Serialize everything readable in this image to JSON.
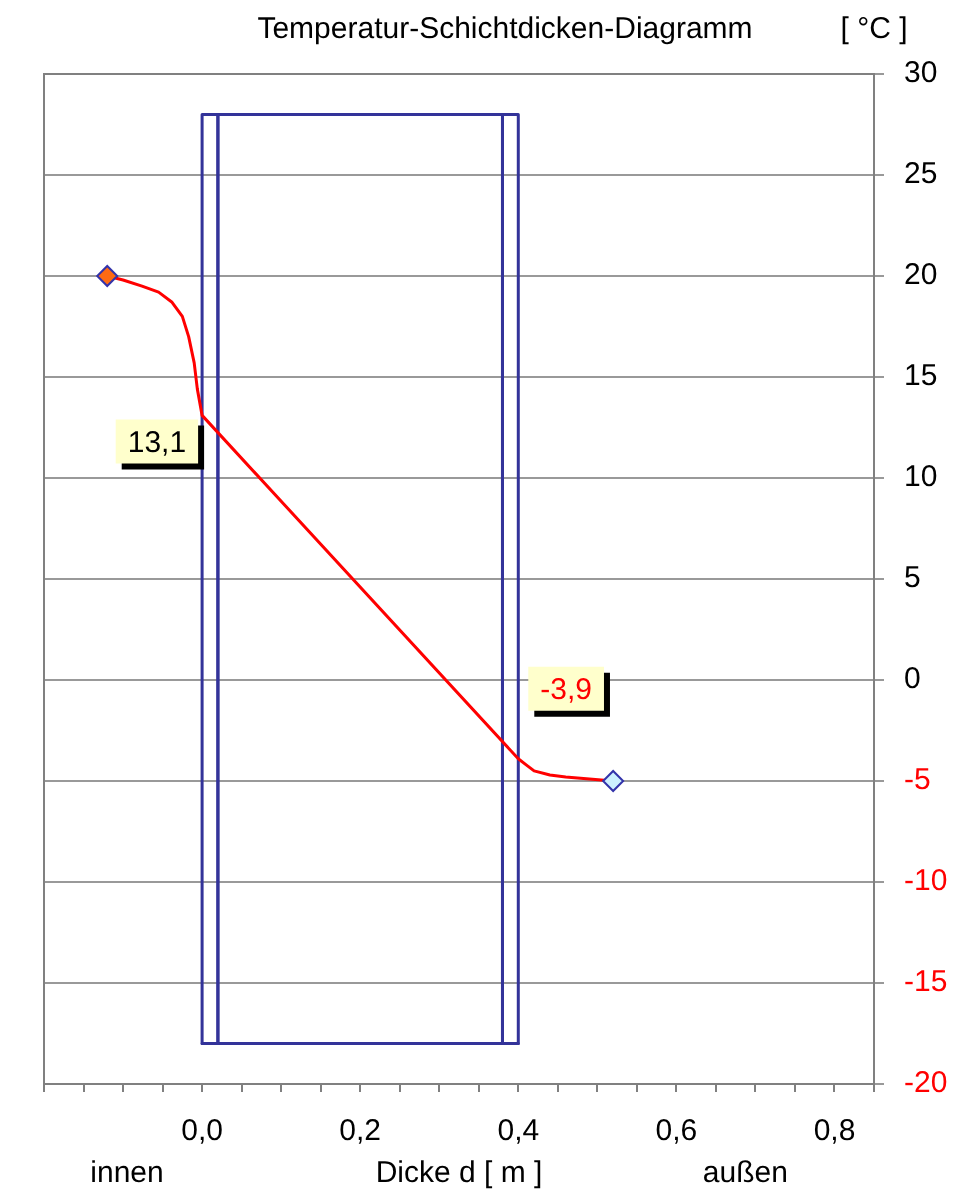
{
  "chart_data": {
    "type": "line",
    "title": "Temperatur-Schichtdicken-Diagramm",
    "xlabel": "Dicke d [ m ]",
    "ylabel": "[ °C ]",
    "series": [
      {
        "color": "#333399",
        "x": [
          0,
          0,
          0.02,
          0.02,
          0.38,
          0.38,
          0.4,
          0.4
        ],
        "values": [
          -18,
          28,
          28,
          -18,
          -18,
          28,
          28,
          -18
        ]
      },
      {
        "color": "#333399",
        "x": [
          0,
          0.02,
          0.02,
          0.38,
          0.38,
          0.4
        ],
        "values": [
          -18,
          -18,
          28,
          28,
          -18,
          -18
        ]
      },
      {
        "color": "#ff0000",
        "x": [
          -0.12,
          -0.1,
          -0.076,
          -0.055,
          -0.038,
          -0.025,
          -0.017,
          -0.01,
          -0.006,
          0,
          0.4,
          0.41,
          0.42,
          0.44,
          0.46,
          0.49,
          0.52
        ],
        "values": [
          20,
          19.8,
          19.5,
          19.2,
          18.7,
          18.0,
          17.0,
          15.7,
          14.4,
          13.1,
          -3.9,
          -4.2,
          -4.5,
          -4.7,
          -4.8,
          -4.9,
          -5
        ]
      },
      {
        "type": "scatter",
        "color": "#ff6a13",
        "marker": "diamond",
        "x": [
          -0.12
        ],
        "values": [
          20
        ]
      },
      {
        "type": "scatter",
        "color": "#ccf0ff",
        "marker": "diamond",
        "x": [
          0.52
        ],
        "values": [
          -5
        ]
      }
    ],
    "xlim": [
      -0.2,
      0.85
    ],
    "xticks": [
      {
        "value": -0.2,
        "label": null
      },
      {
        "value": -0.15,
        "label": null
      },
      {
        "value": -0.1,
        "label": null
      },
      {
        "value": -0.05,
        "label": null
      },
      {
        "value": 0,
        "label": "0,0"
      },
      {
        "value": 0.05,
        "label": null
      },
      {
        "value": 0.1,
        "label": null
      },
      {
        "value": 0.15,
        "label": null
      },
      {
        "value": 0.2,
        "label": "0,2"
      },
      {
        "value": 0.25,
        "label": null
      },
      {
        "value": 0.3,
        "label": null
      },
      {
        "value": 0.35,
        "label": null
      },
      {
        "value": 0.4,
        "label": "0,4"
      },
      {
        "value": 0.45,
        "label": null
      },
      {
        "value": 0.5,
        "label": null
      },
      {
        "value": 0.55,
        "label": null
      },
      {
        "value": 0.6,
        "label": "0,6"
      },
      {
        "value": 0.65,
        "label": null
      },
      {
        "value": 0.7,
        "label": null
      },
      {
        "value": 0.75,
        "label": null
      },
      {
        "value": 0.8,
        "label": "0,8"
      },
      {
        "value": 0.85,
        "label": null
      }
    ],
    "ylim": [
      -20,
      30
    ],
    "yticks": [
      -20,
      -15,
      -10,
      -5,
      0,
      5,
      10,
      15,
      20,
      25,
      30
    ],
    "grid": "y",
    "legend": false,
    "marker": "none",
    "annotations": [
      {
        "text": "13,1",
        "x": 0,
        "y": 13.1
      },
      {
        "text": "-3,9",
        "x": 0.4,
        "y": -3.9
      },
      "innen",
      "außen"
    ]
  }
}
